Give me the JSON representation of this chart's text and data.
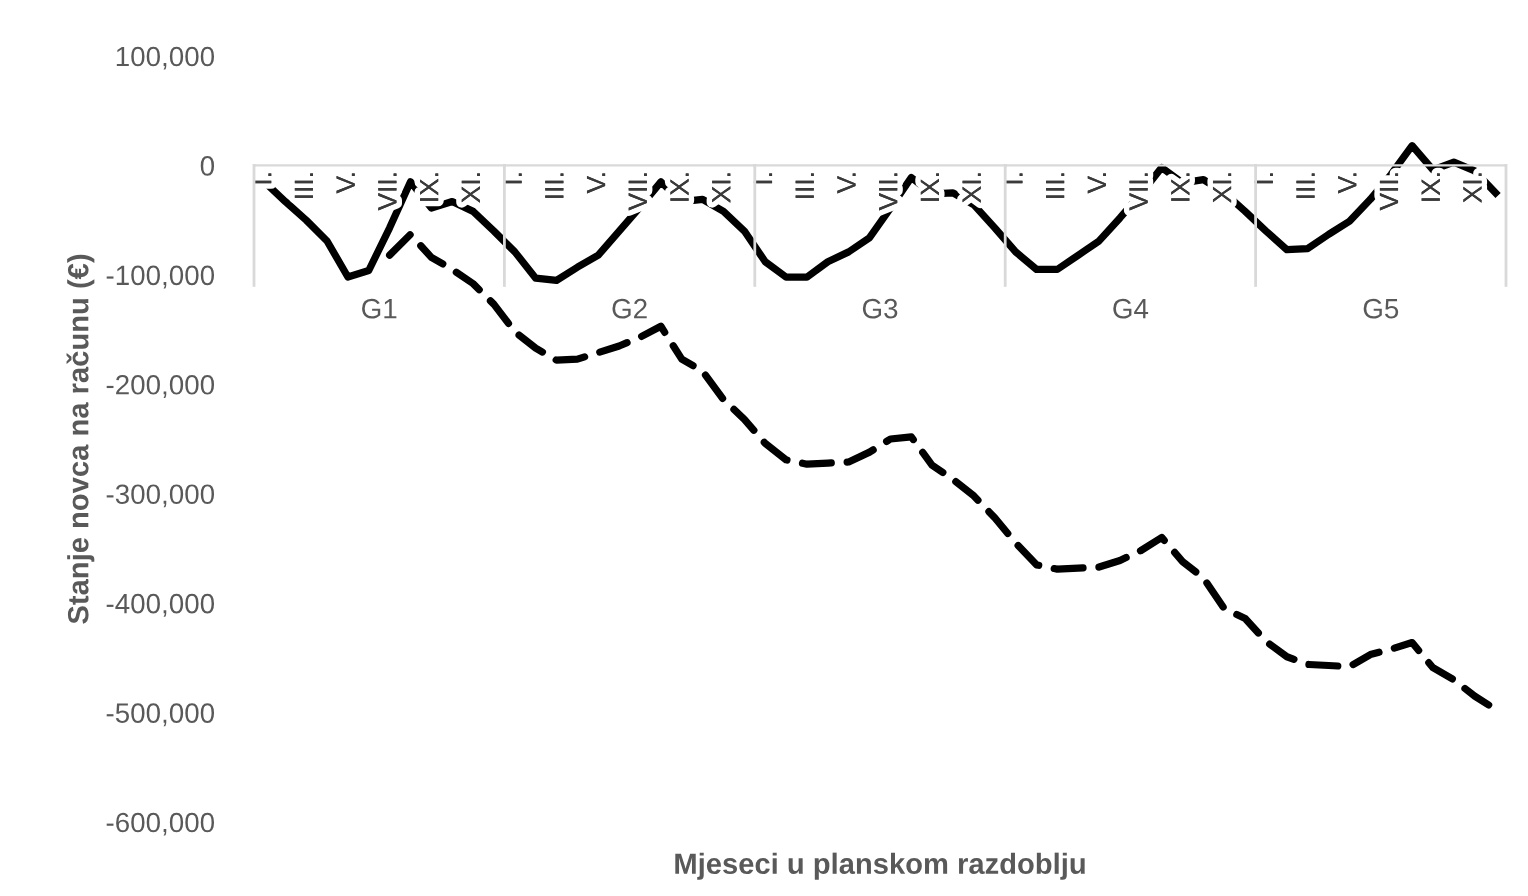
{
  "chart_data": {
    "type": "line",
    "xlabel": "Mjeseci u planskom razdoblju",
    "ylabel": "Stanje novca na računu (€)",
    "categories": [
      "I.",
      null,
      "III.",
      null,
      "V.",
      null,
      "VII.",
      null,
      "IX.",
      null,
      "XI.",
      null,
      "I.",
      null,
      "III.",
      null,
      "V.",
      null,
      "VII.",
      null,
      "IX.",
      null,
      "XI.",
      null,
      "I.",
      null,
      "III.",
      null,
      "V.",
      null,
      "VII.",
      null,
      "IX.",
      null,
      "XI.",
      null,
      "I.",
      null,
      "III.",
      null,
      "V.",
      null,
      "VII.",
      null,
      "IX.",
      null,
      "XI.",
      null,
      "I.",
      null,
      "III.",
      null,
      "V.",
      null,
      "VII.",
      null,
      "IX.",
      null,
      "XI.",
      null
    ],
    "annotations": [
      "G1",
      "G2",
      "G3",
      "G4",
      "G5"
    ],
    "series": [
      {
        "color": "#000000",
        "line_style": "solid",
        "values": [
          -15000,
          -33000,
          -50000,
          -69000,
          -102000,
          -96000,
          -57000,
          -15000,
          -39000,
          -33000,
          -42000,
          -60000,
          -79000,
          -103000,
          -105000,
          -93000,
          -82000,
          -60000,
          -38000,
          -15000,
          -33000,
          -31000,
          -42000,
          -60000,
          -88000,
          -102000,
          -102000,
          -88000,
          -79000,
          -66000,
          -39000,
          -11000,
          -26000,
          -25000,
          -36000,
          -57000,
          -79000,
          -95000,
          -95000,
          -82000,
          -69000,
          -48000,
          -26000,
          -2000,
          -16000,
          -13000,
          -25000,
          -42000,
          -60000,
          -77000,
          -76000,
          -63000,
          -51000,
          -31000,
          -8000,
          18000,
          -4000,
          3000,
          -5000,
          -25000
        ]
      },
      {
        "color": "#000000",
        "line_style": "dashed",
        "values": [
          null,
          null,
          null,
          null,
          null,
          null,
          -82000,
          -63000,
          -84000,
          -95000,
          -108000,
          -127000,
          -152000,
          -167000,
          -178000,
          -177000,
          -171000,
          -165000,
          -157000,
          -147000,
          -177000,
          -188000,
          -214000,
          -232000,
          -254000,
          -269000,
          -273000,
          -272000,
          -271000,
          -262000,
          -250000,
          -248000,
          -274000,
          -287000,
          -302000,
          -322000,
          -345000,
          -365000,
          -369000,
          -368000,
          -367000,
          -361000,
          -352000,
          -340000,
          -362000,
          -377000,
          -405000,
          -414000,
          -435000,
          -449000,
          -456000,
          -457000,
          -458000,
          -447000,
          -442000,
          -436000,
          -459000,
          -470000,
          -485000,
          -497000
        ]
      }
    ],
    "ylim": [
      -600000,
      100000
    ],
    "yticks": [
      {
        "value": 100000,
        "label": "100,000"
      },
      0,
      {
        "value": -100000,
        "label": "-100,000"
      },
      {
        "value": -200000,
        "label": "-200,000"
      },
      {
        "value": -300000,
        "label": "-300,000"
      },
      {
        "value": -400000,
        "label": "-400,000"
      },
      {
        "value": -500000,
        "label": "-500,000"
      },
      {
        "value": -600000,
        "label": "-600,000"
      }
    ],
    "grid": false,
    "legend": false,
    "marker": "none"
  }
}
